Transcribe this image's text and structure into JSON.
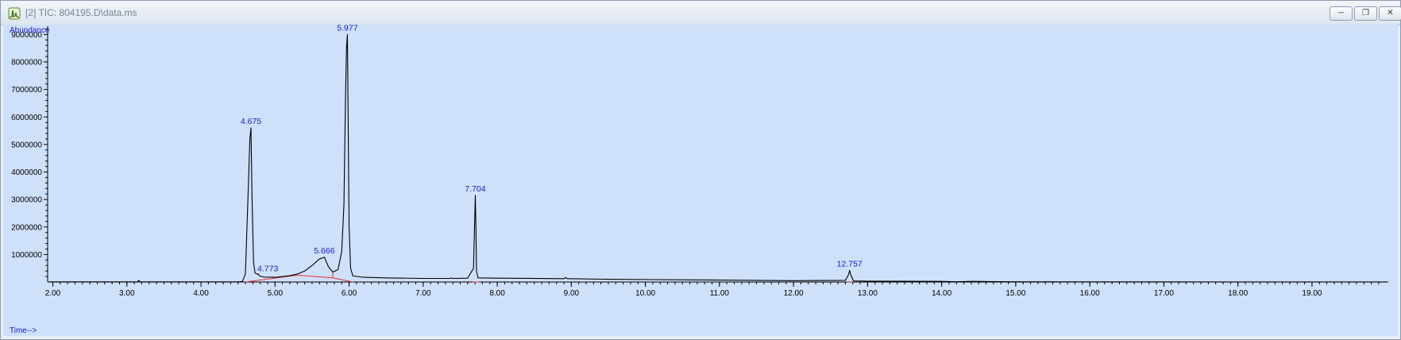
{
  "window": {
    "title": "[2] TIC: 804195.D\\data.ms",
    "icon": "chromatogram-app-icon",
    "controls": [
      "minimize-icon",
      "restore-icon",
      "close-icon"
    ]
  },
  "colors": {
    "plot_background": "#cfe0fb",
    "trace": "#000000",
    "peak_label": "#1a1ac8",
    "baseline": "#e03030",
    "axis": "#000000",
    "axis_label": "#1a1ac8"
  },
  "chart_data": {
    "type": "line",
    "title": "TIC: 804195.D\\data.ms",
    "xlabel": "Time-->",
    "ylabel": "Abundance",
    "xlim": [
      1.93,
      20.03
    ],
    "ylim": [
      0,
      9300000
    ],
    "x_ticks": [
      2.0,
      3.0,
      4.0,
      5.0,
      6.0,
      7.0,
      8.0,
      9.0,
      10.0,
      11.0,
      12.0,
      13.0,
      14.0,
      15.0,
      16.0,
      17.0,
      18.0,
      19.0
    ],
    "x_tick_labels": [
      "2.00",
      "3.00",
      "4.00",
      "5.00",
      "6.00",
      "7.00",
      "8.00",
      "9.00",
      "10.00",
      "11.00",
      "12.00",
      "13.00",
      "14.00",
      "15.00",
      "16.00",
      "17.00",
      "18.00",
      "19.00"
    ],
    "y_ticks": [
      1000000,
      2000000,
      3000000,
      4000000,
      5000000,
      6000000,
      7000000,
      8000000,
      9000000
    ],
    "y_tick_labels": [
      "1000000",
      "2000000",
      "3000000",
      "4000000",
      "5000000",
      "6000000",
      "7000000",
      "8000000",
      "9000000"
    ],
    "series": [
      {
        "name": "TIC",
        "x": [
          1.95,
          2.5,
          3.0,
          3.14,
          3.16,
          3.18,
          3.5,
          4.0,
          4.5,
          4.56,
          4.6,
          4.64,
          4.66,
          4.675,
          4.69,
          4.71,
          4.73,
          4.76,
          4.773,
          4.79,
          4.85,
          5.0,
          5.2,
          5.3,
          5.4,
          5.5,
          5.6,
          5.666,
          5.72,
          5.78,
          5.85,
          5.9,
          5.93,
          5.95,
          5.965,
          5.977,
          5.99,
          6.0,
          6.02,
          6.05,
          6.2,
          6.5,
          7.0,
          7.36,
          7.38,
          7.4,
          7.6,
          7.68,
          7.695,
          7.704,
          7.712,
          7.72,
          7.74,
          8.0,
          8.9,
          8.92,
          8.95,
          9.5,
          10.0,
          11.0,
          12.0,
          12.7,
          12.74,
          12.757,
          12.775,
          12.81,
          13.0,
          14.0,
          14.2,
          14.4,
          15.0,
          16.0,
          17.0,
          18.0,
          19.0,
          20.0
        ],
        "y": [
          5000,
          5000,
          5000,
          5000,
          60000,
          5000,
          5000,
          5000,
          5000,
          20000,
          300000,
          3500000,
          5200000,
          5600000,
          3000000,
          700000,
          330000,
          280000,
          300000,
          220000,
          180000,
          170000,
          230000,
          290000,
          400000,
          600000,
          840000,
          900000,
          560000,
          360000,
          450000,
          1100000,
          2800000,
          6500000,
          8500000,
          9000000,
          5000000,
          2000000,
          500000,
          220000,
          170000,
          150000,
          130000,
          130000,
          150000,
          130000,
          140000,
          500000,
          2200000,
          3150000,
          2000000,
          400000,
          150000,
          140000,
          120000,
          160000,
          120000,
          100000,
          90000,
          70000,
          50000,
          60000,
          250000,
          420000,
          250000,
          40000,
          30000,
          25000,
          10000,
          25000,
          8000,
          5000,
          4000,
          3000,
          2000,
          2000
        ]
      }
    ],
    "baseline_segments": [
      {
        "x": [
          4.6,
          5.3,
          5.78,
          6.05
        ],
        "y": [
          0,
          250000,
          150000,
          0
        ]
      },
      {
        "x": [
          7.67,
          7.76
        ],
        "y": [
          0,
          0
        ]
      },
      {
        "x": [
          12.72,
          12.8
        ],
        "y": [
          0,
          0
        ]
      }
    ],
    "peak_markers": [
      {
        "x": 5.78,
        "y0": 150000,
        "y1": 360000
      }
    ],
    "peaks": [
      {
        "rt": 4.675,
        "label": "4.675",
        "apex": 5600000
      },
      {
        "rt": 4.773,
        "label": "4.773",
        "apex": 300000
      },
      {
        "rt": 5.666,
        "label": "5.666",
        "apex": 900000
      },
      {
        "rt": 5.977,
        "label": "5.977",
        "apex": 9000000
      },
      {
        "rt": 7.704,
        "label": "7.704",
        "apex": 3150000
      },
      {
        "rt": 12.757,
        "label": "12.757",
        "apex": 420000
      }
    ]
  }
}
